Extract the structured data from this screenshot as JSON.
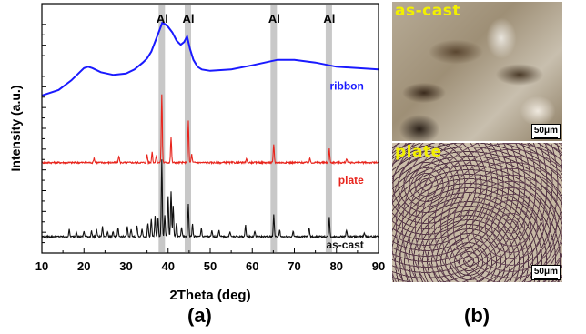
{
  "chart_data": {
    "type": "line",
    "xlabel": "2Theta (deg)",
    "ylabel": "Intensity (a.u.)",
    "xlim": [
      10,
      90
    ],
    "xticks": [
      10,
      20,
      30,
      40,
      50,
      60,
      70,
      80,
      90
    ],
    "yticks_shown": false,
    "grid": false,
    "al_peaks": {
      "label": "Al",
      "positions": [
        38.5,
        44.7,
        65.1,
        78.2
      ],
      "band_color": "#c8c8c8"
    },
    "series": [
      {
        "name": "ribbon",
        "color": "#1a1aff",
        "baseline": 10.2,
        "points": [
          [
            10,
            10.3
          ],
          [
            14,
            10.7
          ],
          [
            17,
            11.4
          ],
          [
            19,
            12.0
          ],
          [
            20,
            12.3
          ],
          [
            21,
            12.4
          ],
          [
            22,
            12.3
          ],
          [
            24,
            12.0
          ],
          [
            27,
            11.8
          ],
          [
            30,
            11.9
          ],
          [
            32,
            12.2
          ],
          [
            34,
            12.7
          ],
          [
            35,
            13.0
          ],
          [
            36,
            13.5
          ],
          [
            37,
            14.3
          ],
          [
            38,
            15.1
          ],
          [
            38.6,
            15.6
          ],
          [
            39.3,
            15.5
          ],
          [
            40,
            15.3
          ],
          [
            41,
            14.9
          ],
          [
            42,
            14.3
          ],
          [
            43,
            14.0
          ],
          [
            43.8,
            14.2
          ],
          [
            44.5,
            14.6
          ],
          [
            45.2,
            13.7
          ],
          [
            46,
            12.9
          ],
          [
            47,
            12.4
          ],
          [
            48,
            12.2
          ],
          [
            50,
            12.1
          ],
          [
            55,
            12.2
          ],
          [
            60,
            12.5
          ],
          [
            63,
            12.7
          ],
          [
            66,
            12.9
          ],
          [
            70,
            12.9
          ],
          [
            75,
            12.7
          ],
          [
            80,
            12.4
          ],
          [
            85,
            12.3
          ],
          [
            90,
            12.2
          ]
        ]
      },
      {
        "name": "plate",
        "color": "#e8241c",
        "baseline": 5.4,
        "peaks": [
          [
            22.4,
            0.35
          ],
          [
            28.3,
            0.5
          ],
          [
            35.0,
            0.6
          ],
          [
            36.2,
            0.8
          ],
          [
            37.2,
            0.5
          ],
          [
            38.5,
            5.0
          ],
          [
            40.7,
            1.8
          ],
          [
            44.8,
            3.1
          ],
          [
            45.6,
            0.6
          ],
          [
            58.6,
            0.3
          ],
          [
            65.1,
            1.3
          ],
          [
            73.7,
            0.3
          ],
          [
            78.3,
            1.0
          ],
          [
            82.4,
            0.3
          ]
        ]
      },
      {
        "name": "as-cast",
        "color": "#111111",
        "baseline": 0.0,
        "peaks": [
          [
            16.5,
            0.5
          ],
          [
            18.2,
            0.4
          ],
          [
            20.0,
            0.4
          ],
          [
            21.8,
            0.4
          ],
          [
            23.0,
            0.5
          ],
          [
            24.4,
            0.7
          ],
          [
            25.6,
            0.4
          ],
          [
            26.9,
            0.4
          ],
          [
            28.1,
            0.6
          ],
          [
            30.3,
            0.7
          ],
          [
            31.2,
            0.6
          ],
          [
            32.6,
            0.8
          ],
          [
            33.8,
            0.6
          ],
          [
            35.2,
            1.0
          ],
          [
            36.0,
            1.3
          ],
          [
            36.9,
            1.5
          ],
          [
            37.6,
            1.4
          ],
          [
            38.5,
            5.6
          ],
          [
            39.2,
            1.6
          ],
          [
            40.0,
            2.9
          ],
          [
            40.7,
            3.3
          ],
          [
            41.2,
            2.2
          ],
          [
            42.0,
            1.0
          ],
          [
            43.2,
            0.7
          ],
          [
            44.8,
            2.4
          ],
          [
            45.8,
            0.9
          ],
          [
            47.9,
            0.6
          ],
          [
            50.4,
            0.4
          ],
          [
            52.1,
            0.5
          ],
          [
            54.7,
            0.4
          ],
          [
            58.4,
            0.8
          ],
          [
            60.6,
            0.4
          ],
          [
            65.1,
            1.6
          ],
          [
            66.5,
            0.5
          ],
          [
            69.7,
            0.4
          ],
          [
            73.5,
            0.7
          ],
          [
            78.3,
            1.4
          ],
          [
            82.4,
            0.5
          ],
          [
            86.6,
            0.3
          ]
        ]
      }
    ]
  },
  "panel_b": {
    "top_label": "as-cast",
    "bottom_label": "plate",
    "scale_text": "50μm"
  },
  "captions": {
    "a": "(a)",
    "b": "(b)"
  }
}
